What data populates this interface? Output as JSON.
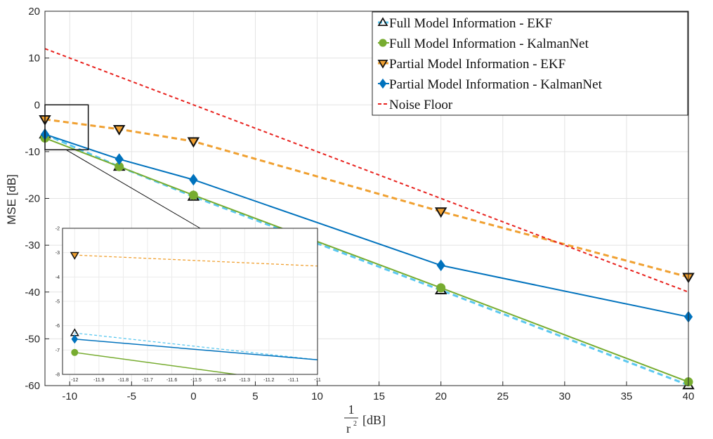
{
  "chart_data": {
    "type": "line",
    "xlabel_numerator": "1",
    "xlabel_denominator": "r",
    "xlabel_exponent": "2",
    "xlabel_unit": "[dB]",
    "ylabel": "MSE [dB]",
    "xlim": [
      -12,
      40
    ],
    "ylim": [
      -60,
      20
    ],
    "xticks": [
      -10,
      -5,
      0,
      5,
      10,
      15,
      20,
      25,
      30,
      35,
      40
    ],
    "yticks": [
      -60,
      -50,
      -40,
      -30,
      -20,
      -10,
      0,
      10,
      20
    ],
    "grid": true,
    "legend_position": "top-right",
    "series": [
      {
        "name": "Full Model Information - EKF",
        "x": [
          -12,
          -6,
          0,
          20,
          40
        ],
        "y": [
          -6.3,
          -13.2,
          -19.6,
          -39.6,
          -59.9
        ],
        "color": "#5bc8f0",
        "line": "dashed",
        "marker": "triangle-up"
      },
      {
        "name": "Full Model Information - KalmanNet",
        "x": [
          -12,
          -6,
          0,
          20,
          40
        ],
        "y": [
          -7.1,
          -13.2,
          -19.3,
          -39.1,
          -59.2
        ],
        "color": "#77ac30",
        "line": "solid",
        "marker": "circle"
      },
      {
        "name": "Partial Model Information - EKF",
        "x": [
          -12,
          -6,
          0,
          20,
          40
        ],
        "y": [
          -3.1,
          -5.2,
          -7.8,
          -22.8,
          -36.8
        ],
        "color": "#f0a030",
        "line": "dashed",
        "marker": "triangle-down"
      },
      {
        "name": "Partial Model Information - KalmanNet",
        "x": [
          -12,
          -6,
          0,
          20,
          40
        ],
        "y": [
          -6.3,
          -11.6,
          -16.0,
          -34.3,
          -45.3
        ],
        "color": "#0072bd",
        "line": "solid",
        "marker": "diamond"
      },
      {
        "name": "Noise Floor",
        "x": [
          -12,
          40
        ],
        "y": [
          12,
          -40
        ],
        "color": "#e8221e",
        "line": "dotted",
        "marker": "none"
      }
    ],
    "inset": {
      "xlim": [
        -12.05,
        -11
      ],
      "ylim": [
        -8,
        -2
      ],
      "xticks": [
        -12,
        -11.9,
        -11.8,
        -11.7,
        -11.6,
        -11.5,
        -11.4,
        -11.3,
        -11.2,
        -11.1,
        -11
      ],
      "yticks": [
        -8,
        -7,
        -6,
        -5,
        -4,
        -3,
        -2
      ],
      "series": [
        {
          "x": [
            -12,
            -11
          ],
          "y": [
            -6.3,
            -7.4
          ]
        },
        {
          "x": [
            -12,
            -11.3
          ],
          "y": [
            -7.1,
            -8.05
          ]
        },
        {
          "x": [
            -12,
            -11
          ],
          "y": [
            -3.1,
            -3.55
          ]
        },
        {
          "x": [
            -12,
            -11
          ],
          "y": [
            -6.55,
            -7.4
          ]
        }
      ]
    }
  }
}
